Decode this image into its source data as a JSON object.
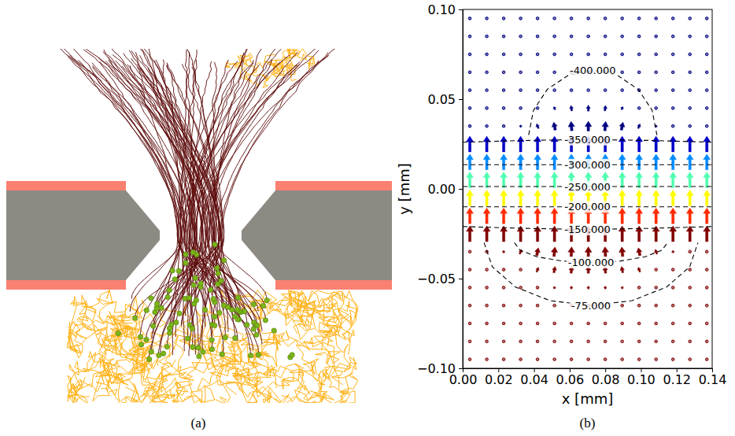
{
  "chart_data": [
    {
      "type": "diagram",
      "label": "(a)"
    },
    {
      "type": "quiver",
      "label": "(b)",
      "x_label": "x [mm]",
      "y_label": "y [mm]",
      "xlim": [
        0,
        0.14
      ],
      "ylim": [
        -0.1,
        0.1
      ],
      "xticks": [
        {
          "value": 0,
          "label": "0.00"
        },
        0.02,
        0.04,
        0.06,
        0.08,
        {
          "value": 0.1,
          "label": "0.10"
        },
        0.12,
        0.14
      ],
      "yticks": [
        {
          "value": -0.1,
          "label": "−0.10"
        },
        {
          "value": -0.05,
          "label": "−0.05"
        },
        {
          "value": 0,
          "label": "0.00"
        },
        0.05,
        {
          "value": 0.1,
          "label": "0.10"
        }
      ],
      "color_range": [
        -360,
        -150
      ],
      "field": {
        "x": [
          0.004,
          0.0135,
          0.023,
          0.0325,
          0.042,
          0.0515,
          0.061,
          0.0705,
          0.08,
          0.0895,
          0.099,
          0.1085,
          0.118,
          0.1275,
          0.137
        ],
        "rows": [
          {
            "y": 0.095,
            "potential": -440,
            "u": [
              0,
              0,
              0,
              0,
              0,
              0,
              0,
              0,
              0,
              0,
              0,
              0,
              0,
              0,
              0
            ],
            "v": [
              0.03,
              0.03,
              0.03,
              0.03,
              0.03,
              0.03,
              0.03,
              0.03,
              0.03,
              0.03,
              0.03,
              0.03,
              0.03,
              0.03,
              0.03
            ]
          },
          {
            "y": 0.085,
            "potential": -440,
            "u": [
              0,
              0,
              0,
              0,
              0,
              0,
              0,
              0,
              0,
              0,
              0,
              0,
              0,
              0,
              0
            ],
            "v": [
              0.03,
              0.03,
              0.03,
              0.03,
              0.03,
              0.03,
              0.03,
              0.03,
              0.03,
              0.03,
              0.03,
              0.03,
              0.03,
              0.03,
              0.03
            ]
          },
          {
            "y": 0.075,
            "potential": -435,
            "u": [
              0,
              0,
              0,
              0,
              0,
              0,
              0,
              0,
              0,
              0,
              0,
              0,
              0,
              0,
              0
            ],
            "v": [
              0.03,
              0.03,
              0.03,
              0.03,
              0.03,
              0.03,
              0.03,
              0.03,
              0.03,
              0.03,
              0.03,
              0.03,
              0.03,
              0.03,
              0.03
            ]
          },
          {
            "y": 0.065,
            "potential": -420,
            "u": [
              0,
              0,
              0,
              0,
              0,
              0,
              0,
              0,
              0,
              0,
              0,
              0,
              0,
              0,
              0
            ],
            "v": [
              0.04,
              0.04,
              0.04,
              0.04,
              0.04,
              0.04,
              0.04,
              0.04,
              0.04,
              0.04,
              0.04,
              0.04,
              0.04,
              0.04,
              0.04
            ]
          },
          {
            "y": 0.055,
            "potential": -408,
            "u": [
              0,
              0,
              0,
              0,
              -0.02,
              -0.04,
              -0.03,
              0,
              0.03,
              0.04,
              0.02,
              0,
              0,
              0,
              0
            ],
            "v": [
              0.04,
              0.04,
              0.04,
              0.04,
              0.05,
              0.08,
              0.12,
              0.13,
              0.12,
              0.08,
              0.05,
              0.04,
              0.04,
              0.04,
              0.04
            ]
          },
          {
            "y": 0.045,
            "potential": -395,
            "u": [
              0,
              0,
              0,
              0,
              -0.05,
              -0.08,
              -0.05,
              0,
              0.05,
              0.08,
              0.05,
              0,
              0,
              0,
              0
            ],
            "v": [
              0.05,
              0.05,
              0.05,
              0.06,
              0.1,
              0.2,
              0.35,
              0.38,
              0.35,
              0.2,
              0.1,
              0.06,
              0.05,
              0.05,
              0.05
            ]
          },
          {
            "y": 0.035,
            "potential": -375,
            "u": [
              0,
              0,
              0,
              -0.03,
              -0.12,
              -0.1,
              -0.05,
              0,
              0.05,
              0.1,
              0.12,
              0.03,
              0,
              0,
              0
            ],
            "v": [
              0.08,
              0.08,
              0.1,
              0.15,
              0.3,
              0.5,
              0.6,
              0.62,
              0.6,
              0.5,
              0.3,
              0.15,
              0.1,
              0.08,
              0.08
            ]
          },
          {
            "y": 0.025,
            "potential": -345,
            "u": [
              0,
              0,
              0,
              0,
              0,
              0,
              0,
              0,
              0,
              0,
              0,
              0,
              0,
              0,
              0
            ],
            "v": [
              1,
              1,
              1,
              1,
              1,
              1,
              1,
              1,
              1,
              1,
              1,
              1,
              1,
              1,
              1
            ]
          },
          {
            "y": 0.015,
            "potential": -305,
            "u": [
              0,
              0,
              0,
              0,
              0,
              0,
              0,
              0,
              0,
              0,
              0,
              0,
              0,
              0,
              0
            ],
            "v": [
              1,
              1,
              1,
              1,
              1,
              1,
              1,
              1,
              1,
              1,
              1,
              1,
              1,
              1,
              1
            ]
          },
          {
            "y": 0.005,
            "potential": -265,
            "u": [
              0,
              0,
              0,
              0,
              0,
              0,
              0,
              0,
              0,
              0,
              0,
              0,
              0,
              0,
              0
            ],
            "v": [
              1,
              1,
              1,
              1,
              1,
              1,
              1,
              1,
              1,
              1,
              1,
              1,
              1,
              1,
              1
            ]
          },
          {
            "y": -0.005,
            "potential": -228,
            "u": [
              0,
              0,
              0,
              0,
              0,
              0,
              0,
              0,
              0,
              0,
              0,
              0,
              0,
              0,
              0
            ],
            "v": [
              1,
              1,
              1,
              1,
              1,
              1,
              1,
              1,
              1,
              1,
              1,
              1,
              1,
              1,
              1
            ]
          },
          {
            "y": -0.015,
            "potential": -185,
            "u": [
              0,
              0,
              0,
              0,
              0,
              0,
              0,
              0,
              0,
              0,
              0,
              0,
              0,
              0,
              0
            ],
            "v": [
              1,
              1,
              1,
              1,
              1,
              1,
              1,
              1,
              1,
              1,
              1,
              1,
              1,
              1,
              1
            ]
          },
          {
            "y": -0.025,
            "potential": -150,
            "u": [
              0,
              0,
              0,
              0,
              0,
              0,
              0,
              0,
              0,
              0,
              0,
              0,
              0,
              0,
              0
            ],
            "v": [
              1,
              1,
              1,
              1,
              1,
              1,
              1,
              1,
              1,
              1,
              1,
              1,
              1,
              1,
              1
            ]
          },
          {
            "y": -0.035,
            "potential": -120,
            "u": [
              0,
              0.02,
              0.05,
              0.12,
              0.1,
              0.06,
              0.03,
              0,
              -0.03,
              -0.06,
              -0.1,
              -0.12,
              -0.05,
              -0.02,
              0
            ],
            "v": [
              0.08,
              0.1,
              0.15,
              0.3,
              0.5,
              0.6,
              0.62,
              0.63,
              0.62,
              0.6,
              0.5,
              0.3,
              0.15,
              0.1,
              0.08
            ]
          },
          {
            "y": -0.045,
            "potential": -98,
            "u": [
              0,
              0,
              0.02,
              0.05,
              0.12,
              0.08,
              0.04,
              0,
              -0.04,
              -0.08,
              -0.12,
              -0.05,
              -0.02,
              0,
              0
            ],
            "v": [
              0.05,
              0.05,
              0.06,
              0.1,
              0.3,
              0.4,
              0.45,
              0.46,
              0.45,
              0.4,
              0.3,
              0.1,
              0.06,
              0.05,
              0.05
            ]
          },
          {
            "y": -0.055,
            "potential": -85,
            "u": [
              0,
              0,
              0,
              0.02,
              0.04,
              0.05,
              0.03,
              0,
              -0.03,
              -0.05,
              -0.04,
              -0.02,
              0,
              0,
              0
            ],
            "v": [
              0.04,
              0.04,
              0.04,
              0.05,
              0.08,
              0.15,
              0.18,
              0.18,
              0.18,
              0.15,
              0.08,
              0.05,
              0.04,
              0.04,
              0.04
            ]
          },
          {
            "y": -0.065,
            "potential": -75,
            "u": [
              0,
              0,
              0,
              0,
              0,
              0,
              0,
              0,
              0,
              0,
              0,
              0,
              0,
              0,
              0
            ],
            "v": [
              0.04,
              0.04,
              0.04,
              0.04,
              0.04,
              0.04,
              0.04,
              0.04,
              0.04,
              0.04,
              0.04,
              0.04,
              0.04,
              0.04,
              0.04
            ]
          },
          {
            "y": -0.075,
            "potential": -68,
            "u": [
              0,
              0,
              0,
              0,
              0,
              0,
              0,
              0,
              0,
              0,
              0,
              0,
              0,
              0,
              0
            ],
            "v": [
              0.03,
              0.03,
              0.03,
              0.03,
              0.03,
              0.03,
              0.03,
              0.03,
              0.03,
              0.03,
              0.03,
              0.03,
              0.03,
              0.03,
              0.03
            ]
          },
          {
            "y": -0.085,
            "potential": -62,
            "u": [
              0,
              0,
              0,
              0,
              0,
              0,
              0,
              0,
              0,
              0,
              0,
              0,
              0,
              0,
              0
            ],
            "v": [
              0.03,
              0.03,
              0.03,
              0.03,
              0.03,
              0.03,
              0.03,
              0.03,
              0.03,
              0.03,
              0.03,
              0.03,
              0.03,
              0.03,
              0.03
            ]
          },
          {
            "y": -0.095,
            "potential": -58,
            "u": [
              0,
              0,
              0,
              0,
              0,
              0,
              0,
              0,
              0,
              0,
              0,
              0,
              0,
              0,
              0
            ],
            "v": [
              0.03,
              0.03,
              0.03,
              0.03,
              0.03,
              0.03,
              0.03,
              0.03,
              0.03,
              0.03,
              0.03,
              0.03,
              0.03,
              0.03,
              0.03
            ]
          }
        ]
      },
      "contours": [
        {
          "label": "-400.000",
          "x": [
            0.037,
            0.0397,
            0.0475,
            0.0592,
            0.073,
            0.0868,
            0.0985,
            0.1063,
            0.109
          ],
          "y": [
            0.03,
            0.0438,
            0.0555,
            0.0633,
            0.066,
            0.0633,
            0.0555,
            0.0438,
            0.03
          ]
        },
        {
          "label": "-350.000",
          "x": [
            0,
            0.035,
            0.07,
            0.105,
            0.14
          ],
          "y": [
            0.026,
            0.027,
            0.0275,
            0.027,
            0.026
          ]
        },
        {
          "label": "-300.000",
          "x": [
            0,
            0.035,
            0.07,
            0.105,
            0.14
          ],
          "y": [
            0.0135,
            0.0135,
            0.0135,
            0.0135,
            0.0135
          ]
        },
        {
          "label": "-250.000",
          "x": [
            0,
            0.035,
            0.07,
            0.105,
            0.14
          ],
          "y": [
            0.0013,
            0.0013,
            0.0013,
            0.0013,
            0.0013
          ]
        },
        {
          "label": "-200.000",
          "x": [
            0,
            0.035,
            0.07,
            0.105,
            0.14
          ],
          "y": [
            -0.01,
            -0.01,
            -0.01,
            -0.01,
            -0.01
          ]
        },
        {
          "label": "-150.000",
          "x": [
            0,
            0.035,
            0.07,
            0.105,
            0.14
          ],
          "y": [
            -0.021,
            -0.022,
            -0.0226,
            -0.022,
            -0.021
          ]
        },
        {
          "label": "-100.000",
          "x": [
            0.029,
            0.0323,
            0.0416,
            0.0555,
            0.072,
            0.0885,
            0.1024,
            0.1117,
            0.115
          ],
          "y": [
            -0.03,
            -0.0342,
            -0.0378,
            -0.0402,
            -0.041,
            -0.0402,
            -0.0378,
            -0.0342,
            -0.03
          ]
        },
        {
          "label": "-75.000",
          "x": [
            0.012,
            0.0166,
            0.0296,
            0.049,
            0.072,
            0.095,
            0.1144,
            0.1274,
            0.132
          ],
          "y": [
            -0.03,
            -0.0434,
            -0.0547,
            -0.0623,
            -0.065,
            -0.0623,
            -0.0547,
            -0.0434,
            -0.03
          ]
        }
      ]
    }
  ]
}
